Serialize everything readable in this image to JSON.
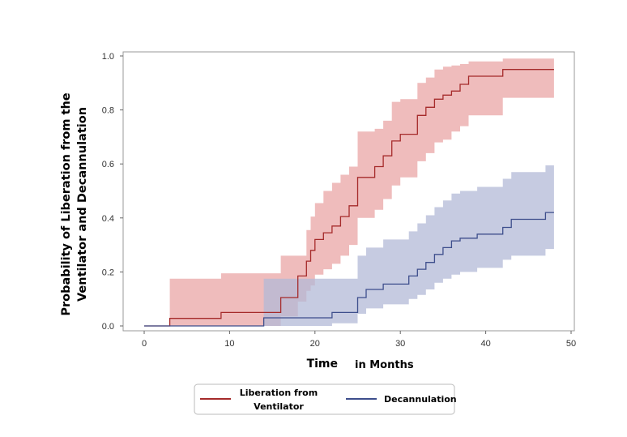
{
  "chart_data": {
    "type": "line",
    "subtype": "step-with-confidence-band",
    "xlabel": "Time",
    "xlabel_suffix": "in Months",
    "ylabel_line1": "Probability of Liberation from the",
    "ylabel_line2": "Ventilator and Decannulation",
    "xlim": [
      -3,
      50
    ],
    "ylim": [
      0,
      1
    ],
    "xticks": [
      "0",
      "10",
      "20",
      "30",
      "40",
      "50"
    ],
    "yticks": [
      "0.0",
      "0.2",
      "0.4",
      "0.6",
      "0.8",
      "1.0"
    ],
    "grid": false,
    "legend_position": "bottom-center",
    "series": [
      {
        "name": "Liberation from",
        "name_line2": "Ventilator",
        "line_color": "#A52A2A",
        "band_color": "#E9A5A5",
        "x": [
          0,
          3,
          9,
          16,
          18,
          19,
          19.5,
          20,
          21,
          22,
          23,
          24,
          25,
          27,
          28,
          29,
          30,
          32,
          33,
          34,
          35,
          36,
          37,
          38,
          42,
          48
        ],
        "y": [
          0.0,
          0.028,
          0.05,
          0.105,
          0.185,
          0.24,
          0.28,
          0.32,
          0.345,
          0.37,
          0.405,
          0.445,
          0.55,
          0.59,
          0.63,
          0.685,
          0.71,
          0.78,
          0.81,
          0.84,
          0.855,
          0.87,
          0.895,
          0.925,
          0.95,
          0.95
        ],
        "lower": [
          0.0,
          0.0,
          0.0,
          0.035,
          0.09,
          0.13,
          0.15,
          0.19,
          0.21,
          0.23,
          0.26,
          0.3,
          0.4,
          0.43,
          0.47,
          0.52,
          0.55,
          0.61,
          0.64,
          0.68,
          0.69,
          0.72,
          0.74,
          0.78,
          0.845,
          0.845
        ],
        "upper": [
          0.0,
          0.175,
          0.195,
          0.26,
          0.26,
          0.355,
          0.405,
          0.455,
          0.5,
          0.53,
          0.56,
          0.59,
          0.72,
          0.73,
          0.76,
          0.83,
          0.84,
          0.9,
          0.92,
          0.95,
          0.96,
          0.965,
          0.97,
          0.98,
          0.99,
          0.99
        ]
      },
      {
        "name": "Decannulation",
        "line_color": "#3D4E8C",
        "band_color": "#B3BAD7",
        "x": [
          0,
          14,
          22,
          25,
          26,
          28,
          31,
          32,
          33,
          34,
          35,
          36,
          37,
          39,
          42,
          43,
          47,
          48
        ],
        "y": [
          0.0,
          0.03,
          0.05,
          0.105,
          0.135,
          0.155,
          0.185,
          0.21,
          0.235,
          0.265,
          0.29,
          0.315,
          0.325,
          0.34,
          0.365,
          0.395,
          0.42,
          0.42
        ],
        "lower": [
          0.0,
          0.0,
          0.01,
          0.045,
          0.065,
          0.08,
          0.1,
          0.115,
          0.135,
          0.16,
          0.175,
          0.19,
          0.2,
          0.215,
          0.245,
          0.26,
          0.285,
          0.285
        ],
        "upper": [
          0.0,
          0.175,
          0.175,
          0.26,
          0.29,
          0.32,
          0.35,
          0.38,
          0.41,
          0.44,
          0.465,
          0.49,
          0.5,
          0.515,
          0.545,
          0.57,
          0.595,
          0.595
        ]
      }
    ]
  }
}
